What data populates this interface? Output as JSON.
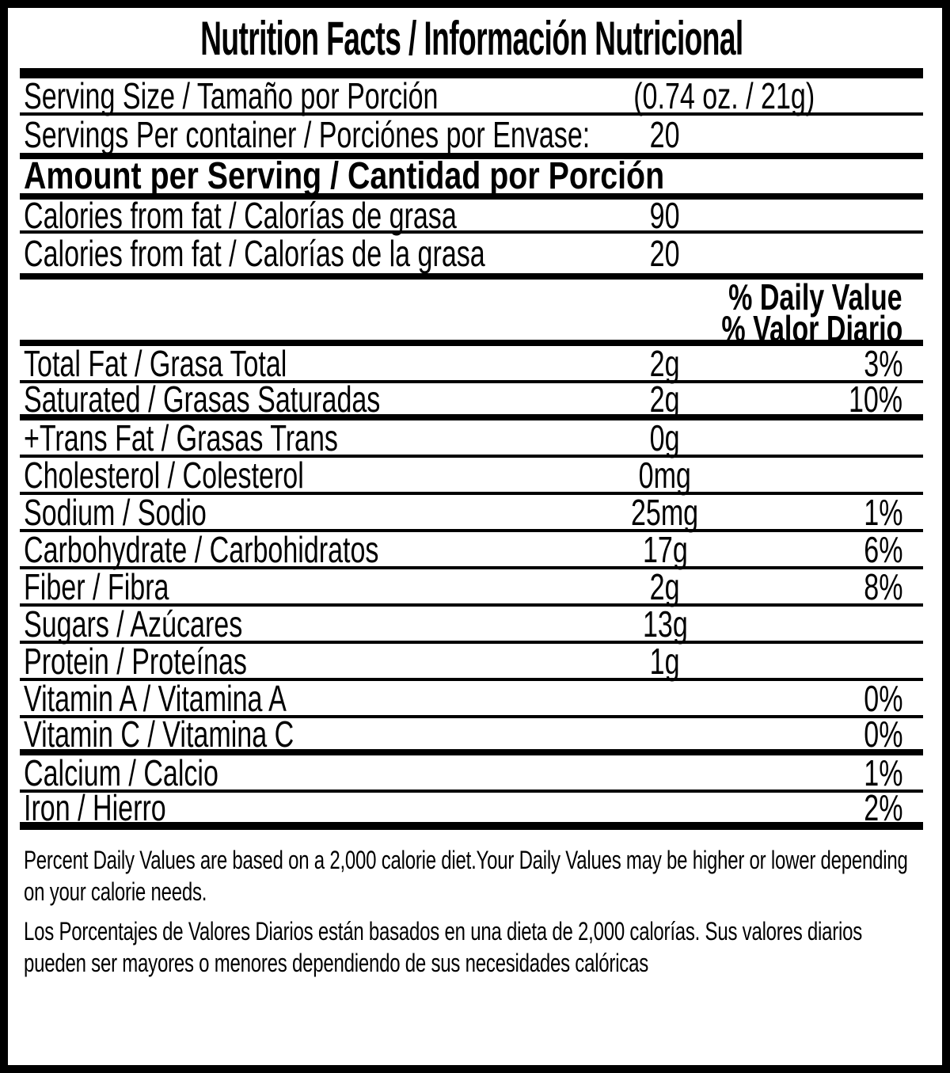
{
  "label": {
    "title": "Nutrition Facts / Información Nutricional",
    "serving": {
      "label": "Serving Size / Tamaño por Porción",
      "value": "(0.74 oz. / 21g)"
    },
    "servings_per_container": {
      "label": "Servings Per container / Porciónes por Envase:",
      "value": "20"
    },
    "amount_header": "Amount per Serving / Cantidad por Porción",
    "calories_rows": [
      {
        "label": "Calories from fat / Calorías de grasa",
        "value": "90"
      },
      {
        "label": "Calories from fat / Calorías de la grasa",
        "value": "20"
      }
    ],
    "daily_value_headers": [
      "% Daily Value",
      "% Valor Diario"
    ],
    "nutrients": [
      {
        "label": "Total Fat / Grasa Total",
        "amount": "2g",
        "dv": "3%"
      },
      {
        "label": "Saturated / Grasas Saturadas",
        "amount": "2g",
        "dv": "10%"
      },
      {
        "label": "+Trans Fat / Grasas Trans",
        "amount": "0g",
        "dv": ""
      },
      {
        "label": "Cholesterol / Colesterol",
        "amount": "0mg",
        "dv": ""
      },
      {
        "label": "Sodium / Sodio",
        "amount": "25mg",
        "dv": "1%"
      },
      {
        "label": "Carbohydrate / Carbohidratos",
        "amount": "17g",
        "dv": "6%"
      },
      {
        "label": "Fiber / Fibra",
        "amount": "2g",
        "dv": "8%"
      },
      {
        "label": "Sugars / Azúcares",
        "amount": "13g",
        "dv": ""
      },
      {
        "label": "Protein / Proteínas",
        "amount": "1g",
        "dv": ""
      },
      {
        "label": "Vitamin A / Vitamina A",
        "amount": "",
        "dv": "0%"
      },
      {
        "label": "Vitamin C / Vitamina C",
        "amount": "",
        "dv": "0%"
      },
      {
        "label": "Calcium / Calcio",
        "amount": "",
        "dv": "1%"
      },
      {
        "label": "Iron / Hierro",
        "amount": "",
        "dv": "2%"
      }
    ],
    "footnotes": [
      "Percent Daily Values are based on a 2,000 calorie diet.Your Daily Values may be higher or lower depending on your calorie needs.",
      "Los Porcentajes de Valores Diarios están basados en una dieta de 2,000 calorías. Sus valores diarios pueden ser mayores o menores dependiendo de sus necesidades calóricas"
    ],
    "colors": {
      "text": "#000000",
      "background": "#ffffff",
      "border": "#000000"
    }
  }
}
